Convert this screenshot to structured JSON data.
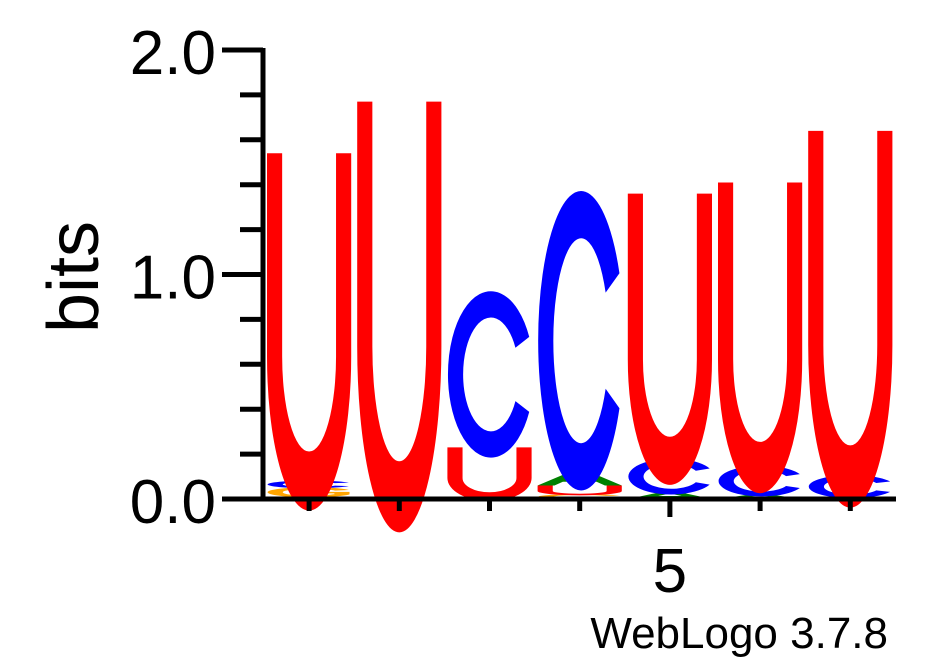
{
  "chart_data": {
    "type": "sequence-logo",
    "ylabel": "bits",
    "ylim": [
      0,
      2
    ],
    "yticks": [
      "0.0",
      "1.0",
      "2.0"
    ],
    "xtick_labels": [
      {
        "position": 5,
        "label": "5"
      }
    ],
    "colors": {
      "U": "#ff0000",
      "C": "#0000ff",
      "A": "#008000",
      "G": "#ffa500"
    },
    "positions": [
      {
        "pos": 1,
        "letters": [
          {
            "base": "A",
            "bits": 0.01
          },
          {
            "base": "G",
            "bits": 0.04
          },
          {
            "base": "C",
            "bits": 0.03
          },
          {
            "base": "U",
            "bits": 1.46
          }
        ]
      },
      {
        "pos": 2,
        "letters": [
          {
            "base": "A",
            "bits": 0.01
          },
          {
            "base": "U",
            "bits": 1.76
          }
        ]
      },
      {
        "pos": 3,
        "letters": [
          {
            "base": "A",
            "bits": 0.01
          },
          {
            "base": "U",
            "bits": 0.22
          },
          {
            "base": "C",
            "bits": 0.65
          }
        ]
      },
      {
        "pos": 4,
        "letters": [
          {
            "base": "G",
            "bits": 0.02
          },
          {
            "base": "U",
            "bits": 0.04
          },
          {
            "base": "A",
            "bits": 0.06
          },
          {
            "base": "C",
            "bits": 1.17
          }
        ]
      },
      {
        "pos": 5,
        "letters": [
          {
            "base": "A",
            "bits": 0.03
          },
          {
            "base": "C",
            "bits": 0.14
          },
          {
            "base": "U",
            "bits": 1.19
          }
        ]
      },
      {
        "pos": 6,
        "letters": [
          {
            "base": "A",
            "bits": 0.02
          },
          {
            "base": "C",
            "bits": 0.12
          },
          {
            "base": "U",
            "bits": 1.27
          }
        ]
      },
      {
        "pos": 7,
        "letters": [
          {
            "base": "A",
            "bits": 0.01
          },
          {
            "base": "C",
            "bits": 0.09
          },
          {
            "base": "U",
            "bits": 1.54
          }
        ]
      }
    ]
  },
  "footer": {
    "credit": "WebLogo 3.7.8"
  }
}
